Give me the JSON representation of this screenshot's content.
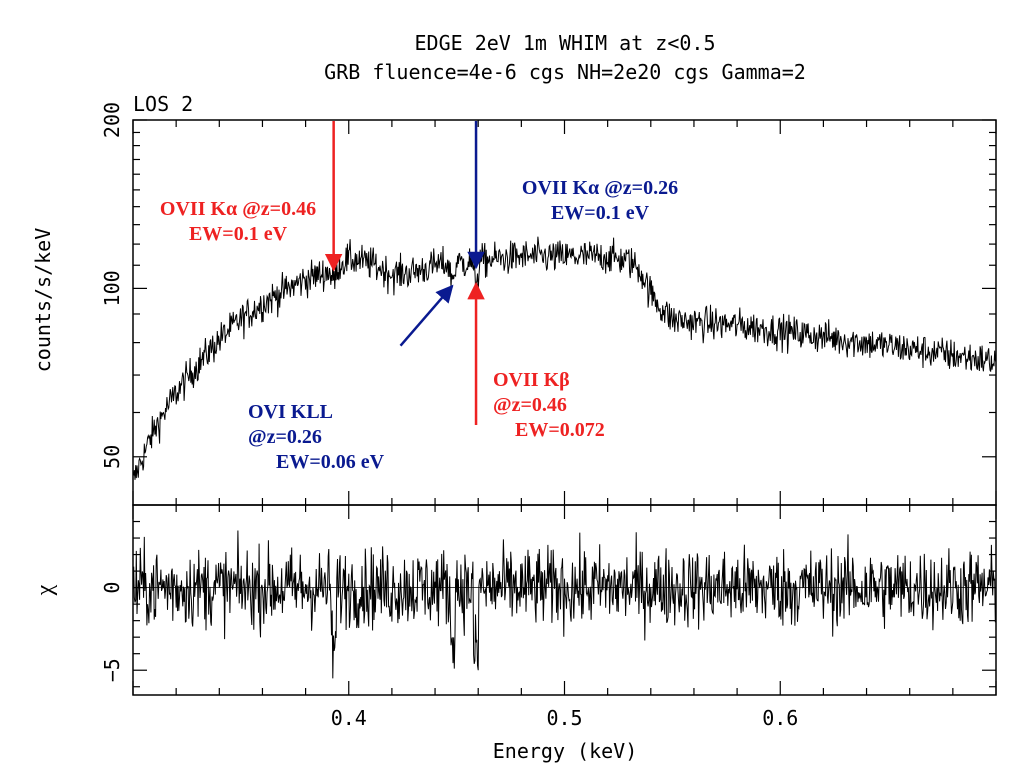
{
  "colors": {
    "red": "#ee2222",
    "blue": "#0a1a90",
    "ink": "#000000"
  },
  "chart_data": {
    "type": "line",
    "title": "EDGE 2eV 1m WHIM at z<0.5",
    "subtitle": "GRB fluence=4e-6 cgs NH=2e20 cgs Gamma=2",
    "panel_label": "LOS 2",
    "xlabel": "Energy (keV)",
    "xlim": [
      0.3,
      0.7
    ],
    "x_ticks": [
      0.4,
      0.5,
      0.6
    ],
    "x_tick_labels": [
      "0.4",
      "0.5",
      "0.6"
    ],
    "top_panel": {
      "ylabel": "counts/s/keV",
      "yscale": "log",
      "ylim": [
        41,
        200
      ],
      "y_ticks": [
        50,
        100,
        200
      ],
      "y_tick_labels": [
        "50",
        "100",
        "200"
      ],
      "spectrum_shape": {
        "x": [
          0.3,
          0.31,
          0.32,
          0.33,
          0.34,
          0.35,
          0.36,
          0.37,
          0.38,
          0.39,
          0.395,
          0.4,
          0.41,
          0.42,
          0.43,
          0.44,
          0.45,
          0.46,
          0.47,
          0.48,
          0.49,
          0.5,
          0.51,
          0.52,
          0.53,
          0.535,
          0.54,
          0.545,
          0.55,
          0.56,
          0.58,
          0.6,
          0.62,
          0.64,
          0.66,
          0.68,
          0.7
        ],
        "y": [
          45,
          56,
          65,
          73,
          81,
          88,
          94,
          99,
          104,
          107,
          110,
          113,
          111,
          106,
          107,
          110,
          111,
          112,
          113,
          114,
          114,
          114,
          114,
          114,
          112,
          108,
          98,
          92,
          88,
          87,
          86,
          84,
          82,
          80,
          78,
          76,
          74
        ]
      },
      "noise_fraction": 0.035
    },
    "bottom_panel": {
      "ylabel": "χ",
      "ylim": [
        -6.5,
        5
      ],
      "y_ticks": [
        -5,
        0
      ],
      "y_tick_labels": [
        "−5",
        "0"
      ],
      "residual_sigma": 1.2
    },
    "annotations": [
      {
        "lines": [
          "OVII Kα @z=0.46",
          "EW=0.1 eV"
        ],
        "color": "red",
        "arrow_from": [
          0.393,
          200
        ],
        "arrow_to": [
          0.393,
          108
        ]
      },
      {
        "lines": [
          "OVII Kα @z=0.26",
          "EW=0.1 eV"
        ],
        "color": "blue",
        "arrow_from": [
          0.459,
          205
        ],
        "arrow_to": [
          0.459,
          109
        ]
      },
      {
        "lines": [
          "OVI KLL",
          "@z=0.26",
          "EW=0.06 eV"
        ],
        "color": "blue",
        "arrow_from": [
          0.424,
          79
        ],
        "arrow_to": [
          0.448,
          101
        ]
      },
      {
        "lines": [
          "OVII Kβ",
          "@z=0.46",
          "EW=0.072"
        ],
        "color": "red",
        "arrow_from": [
          0.459,
          57
        ],
        "arrow_to": [
          0.459,
          102
        ]
      }
    ]
  }
}
